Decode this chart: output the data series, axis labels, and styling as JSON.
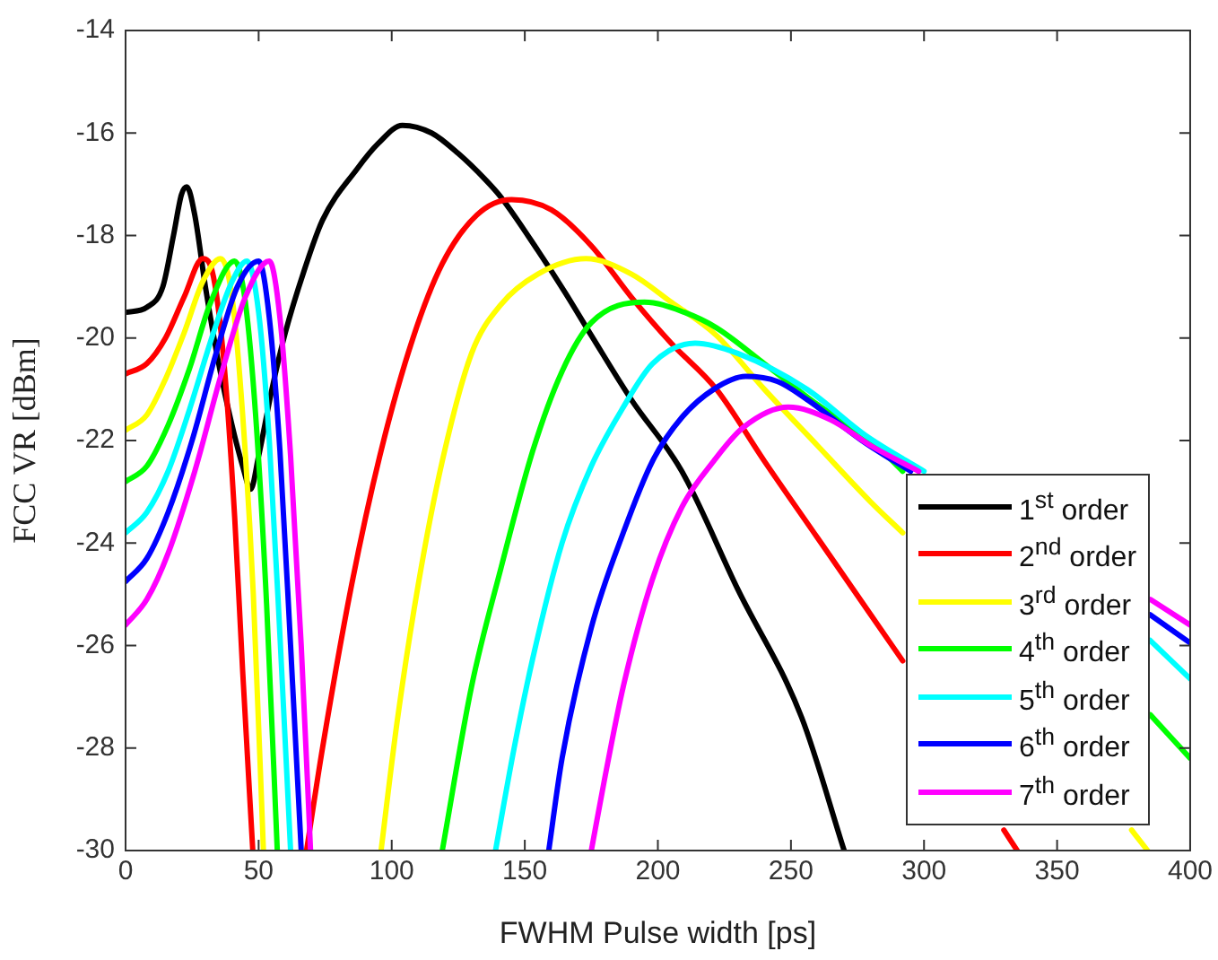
{
  "chart_data": {
    "type": "line",
    "xlabel": "FWHM Pulse width [ps]",
    "ylabel": "FCC VR [dBm]",
    "xlim": [
      0,
      400
    ],
    "xticks": [
      0,
      50,
      100,
      150,
      200,
      250,
      300,
      350,
      400
    ],
    "ylim": [
      -30,
      -14
    ],
    "yticks": [
      -30,
      -28,
      -26,
      -24,
      -22,
      -20,
      -18,
      -16,
      -14
    ],
    "legend": "bottom right",
    "marker": "none",
    "line_style": "solid",
    "series": [
      {
        "name": "1$^{st}$ order",
        "color": "#000000",
        "x": [
          0,
          8,
          14,
          18,
          21,
          23,
          26,
          30,
          35,
          40,
          44,
          47,
          50,
          55,
          60,
          67,
          74,
          87,
          95,
          104,
          115,
          125,
          135,
          141,
          155,
          165,
          175,
          190,
          209,
          230,
          254,
          270
        ],
        "values": [
          -19.5,
          -19.4,
          -19.0,
          -18.0,
          -17.2,
          -17.05,
          -17.6,
          -19.0,
          -20.5,
          -21.7,
          -22.5,
          -22.95,
          -22.3,
          -21.0,
          -19.9,
          -18.7,
          -17.7,
          -16.7,
          -16.2,
          -15.85,
          -16.0,
          -16.4,
          -16.9,
          -17.25,
          -18.3,
          -19.1,
          -19.95,
          -21.2,
          -22.6,
          -24.9,
          -27.4,
          -30
        ]
      },
      {
        "name": "2$^{nd}$ order",
        "color": "#ff0000",
        "x": [
          0,
          8,
          15,
          22,
          29,
          33,
          37,
          41,
          44,
          47.8,
          55,
          68,
          74,
          85,
          96,
          108,
          119,
          132,
          145,
          160,
          175,
          190,
          205,
          222,
          240,
          260,
          280,
          292,
          310,
          330,
          335
        ],
        "values": [
          -20.7,
          -20.5,
          -20.0,
          -19.2,
          -18.45,
          -18.8,
          -20.5,
          -23.5,
          -26.5,
          -30,
          null,
          -30,
          -28,
          -24.8,
          -22.2,
          -20,
          -18.55,
          -17.6,
          -17.3,
          -17.5,
          -18.2,
          -19.2,
          -20.1,
          -21.0,
          -22.4,
          -23.9,
          -25.4,
          -26.3,
          null,
          -29.6,
          -30
        ]
      },
      {
        "name": "3$^{rd}$ order",
        "color": "#ffff00",
        "x": [
          0,
          8,
          15,
          22,
          29,
          35.7,
          40,
          44,
          48,
          51.8,
          70,
          96,
          102,
          110,
          119,
          130,
          141,
          155,
          173,
          190,
          205,
          222,
          240,
          260,
          280,
          292,
          340,
          378,
          384
        ],
        "values": [
          -21.8,
          -21.5,
          -20.8,
          -19.9,
          -18.9,
          -18.45,
          -19.2,
          -21.5,
          -25,
          -30,
          null,
          -30,
          -27.5,
          -24.8,
          -22.4,
          -20.3,
          -19.35,
          -18.75,
          -18.45,
          -18.75,
          -19.3,
          -19.95,
          -21.0,
          -22.1,
          -23.2,
          -23.8,
          null,
          -29.6,
          -30
        ]
      },
      {
        "name": "4$^{th}$ order",
        "color": "#00ff00",
        "x": [
          0,
          8,
          16,
          24,
          32,
          41,
          45,
          49,
          53,
          57,
          90,
          119,
          130,
          141,
          153,
          164,
          175,
          195,
          210,
          222,
          240,
          260,
          280,
          292,
          340,
          385,
          400
        ],
        "values": [
          -22.8,
          -22.5,
          -21.7,
          -20.6,
          -19.3,
          -18.5,
          -19.3,
          -21.6,
          -25.2,
          -30,
          null,
          -30,
          -26.8,
          -24.5,
          -22.2,
          -20.65,
          -19.7,
          -19.3,
          -19.5,
          -19.8,
          -20.5,
          -21.3,
          -22.0,
          -22.6,
          null,
          -27.35,
          -28.2
        ]
      },
      {
        "name": "5$^{th}$ order",
        "color": "#00ffff",
        "x": [
          0,
          8,
          16,
          24,
          33,
          40,
          45.6,
          50,
          54,
          58,
          62,
          100,
          139,
          146,
          153,
          164,
          175,
          187,
          198,
          214,
          230,
          256,
          278,
          300,
          340,
          385,
          400
        ],
        "values": [
          -23.8,
          -23.4,
          -22.6,
          -21.4,
          -19.9,
          -18.9,
          -18.5,
          -19.5,
          -22,
          -25.8,
          -30,
          null,
          -30,
          -28,
          -26.25,
          -24,
          -22.5,
          -21.35,
          -20.5,
          -20.1,
          -20.3,
          -21.0,
          -21.9,
          -22.6,
          null,
          -25.9,
          -26.65
        ]
      },
      {
        "name": "6$^{th}$ order",
        "color": "#0000ff",
        "x": [
          0,
          8,
          16,
          25,
          34,
          42,
          50,
          54,
          58,
          62,
          66,
          110,
          159,
          164,
          175,
          187,
          198,
          209,
          221,
          233,
          245,
          256,
          278,
          295,
          340,
          385,
          400
        ],
        "values": [
          -24.75,
          -24.3,
          -23.4,
          -22,
          -20.3,
          -19,
          -18.5,
          -19.6,
          -22.2,
          -26,
          -30,
          null,
          -30,
          -28.2,
          -25.65,
          -23.8,
          -22.4,
          -21.55,
          -21.0,
          -20.75,
          -20.85,
          -21.2,
          -22.05,
          -22.6,
          null,
          -25.4,
          -25.95
        ]
      },
      {
        "name": "7$^{th}$ order",
        "color": "#ff00ff",
        "x": [
          0,
          8,
          16,
          26,
          36,
          45,
          54,
          58,
          62,
          66,
          69.5,
          120,
          175,
          180,
          187,
          198,
          209,
          221,
          232,
          249,
          265,
          280,
          298,
          340,
          385,
          400
        ],
        "values": [
          -25.6,
          -25.1,
          -24.2,
          -22.6,
          -20.7,
          -19.2,
          -18.5,
          -19.6,
          -22.3,
          -26,
          -30,
          null,
          -30,
          -28.6,
          -26.8,
          -24.7,
          -23.3,
          -22.4,
          -21.75,
          -21.35,
          -21.6,
          -22.1,
          -22.6,
          null,
          -25.1,
          -25.6
        ]
      }
    ]
  }
}
